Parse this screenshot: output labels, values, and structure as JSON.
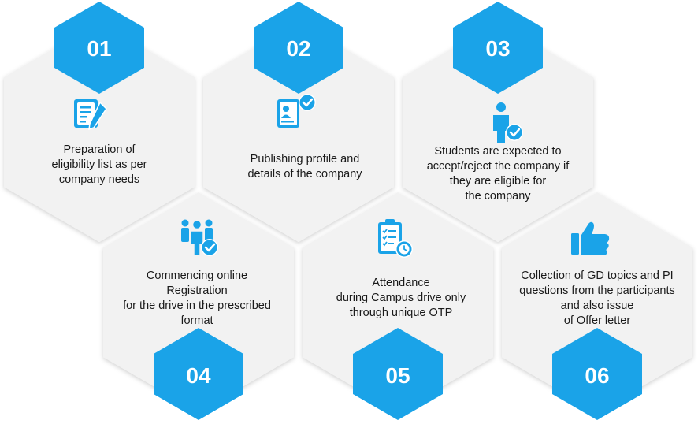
{
  "steps": [
    {
      "number": "01",
      "icon": "document-pen-icon",
      "lines": [
        "Preparation of",
        "eligibility list as per",
        "company needs"
      ]
    },
    {
      "number": "02",
      "icon": "profile-card-check-icon",
      "lines": [
        "Publishing profile and",
        "details of the company"
      ]
    },
    {
      "number": "03",
      "icon": "person-check-icon",
      "lines": [
        "Students are expected to",
        "accept/reject the company if",
        "they are eligible for",
        "the company"
      ]
    },
    {
      "number": "04",
      "icon": "group-check-icon",
      "lines": [
        "Commencing online",
        "Registration",
        "for the drive in the prescribed",
        "format"
      ]
    },
    {
      "number": "05",
      "icon": "clipboard-clock-icon",
      "lines": [
        "Attendance",
        "during Campus drive only",
        "through unique OTP"
      ]
    },
    {
      "number": "06",
      "icon": "thumbs-up-icon",
      "lines": [
        "Collection of GD topics and PI",
        "questions from the participants",
        "and also issue",
        "of Offer letter"
      ]
    }
  ],
  "colors": {
    "accent": "#1aa3e8",
    "hex_fill": "#f2f2f2",
    "text": "#1a1a1a"
  }
}
